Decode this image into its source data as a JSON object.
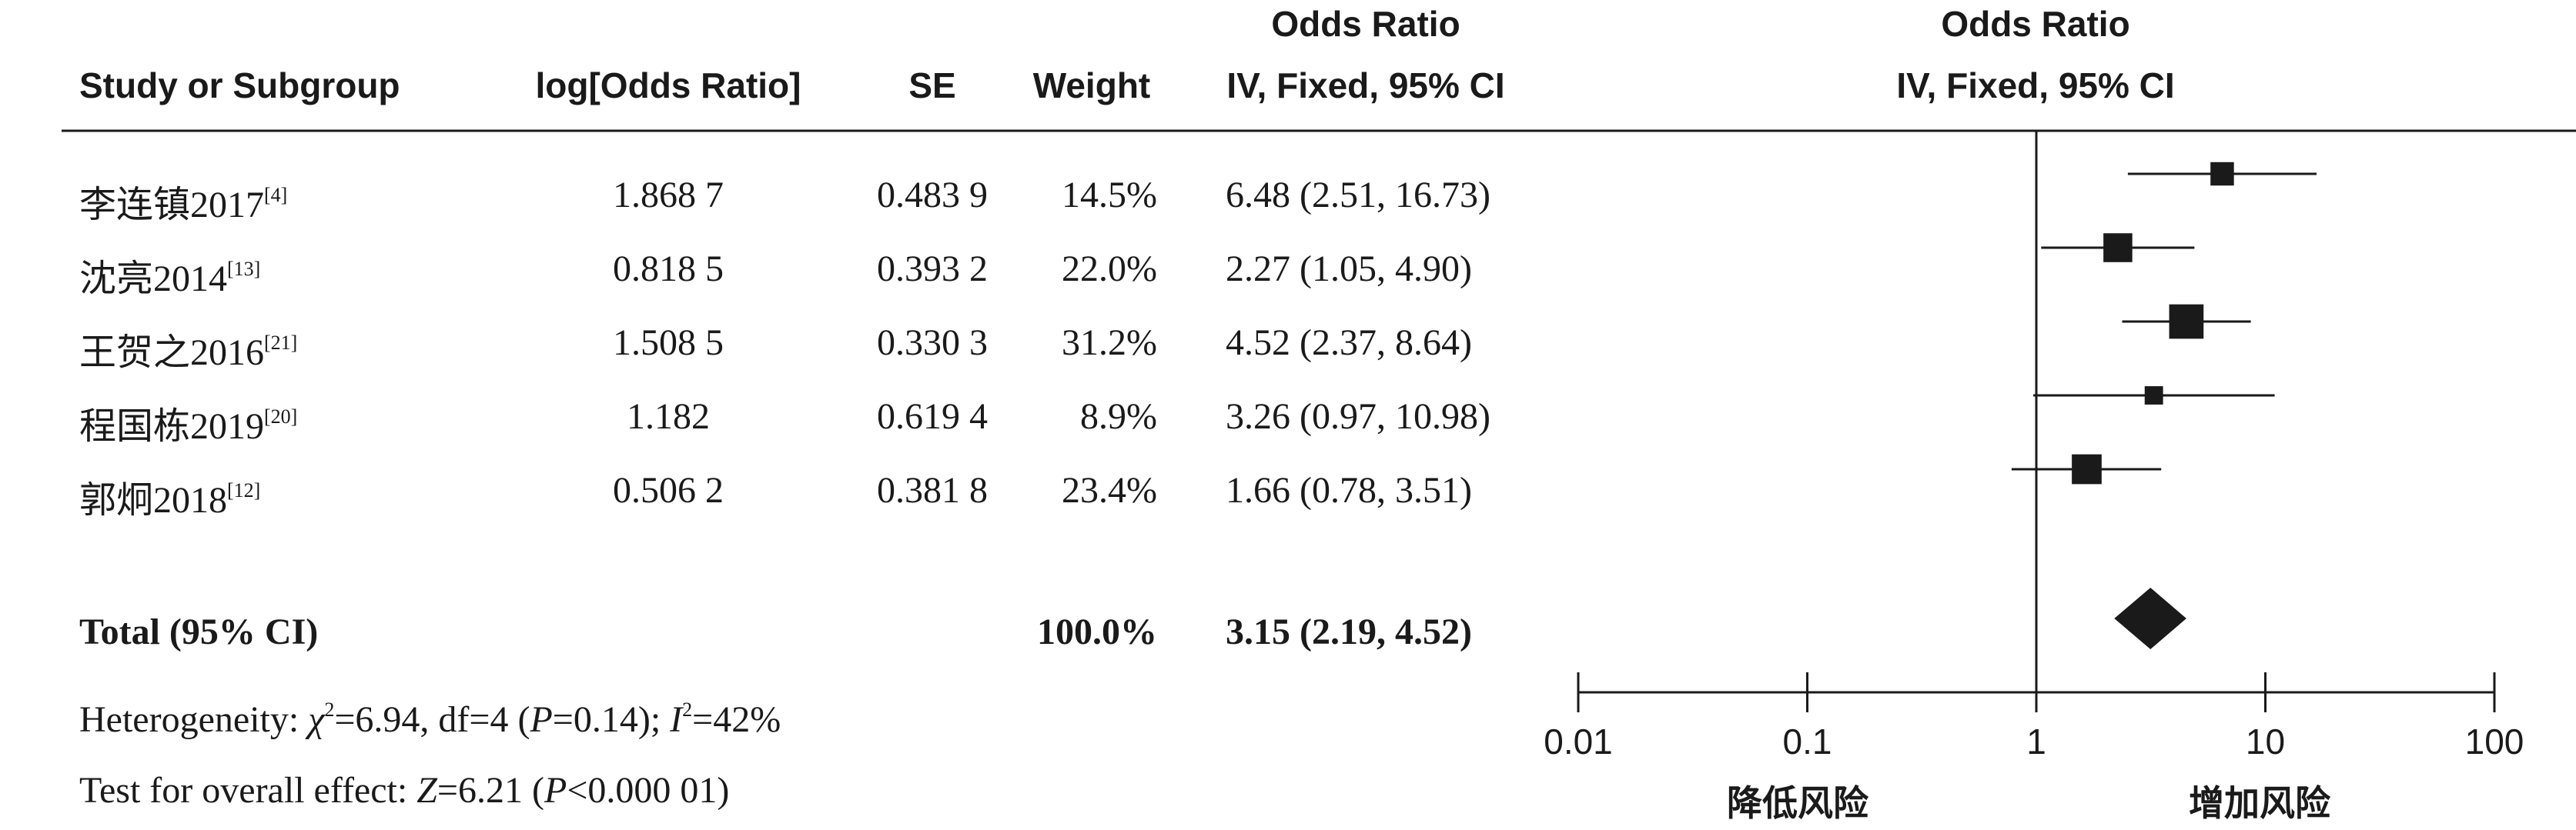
{
  "headers": {
    "study": "Study or Subgroup",
    "log_or": "log[Odds Ratio]",
    "se": "SE",
    "weight": "Weight",
    "or_line1": "Odds Ratio",
    "or_line2": "IV, Fixed, 95% CI",
    "plot_line1": "Odds Ratio",
    "plot_line2": "IV, Fixed, 95% CI"
  },
  "studies": [
    {
      "name": "李连镇2017",
      "ref": "[4]",
      "log_or": "1.868 7",
      "se": "0.483 9",
      "weight": "14.5%",
      "ci_text": "6.48 (2.51, 16.73)"
    },
    {
      "name": "沈亮2014",
      "ref": "[13]",
      "log_or": "0.818 5",
      "se": "0.393 2",
      "weight": "22.0%",
      "ci_text": "2.27 (1.05, 4.90)"
    },
    {
      "name": "王贺之2016",
      "ref": "[21]",
      "log_or": "1.508 5",
      "se": "0.330 3",
      "weight": "31.2%",
      "ci_text": "4.52 (2.37, 8.64)"
    },
    {
      "name": "程国栋2019",
      "ref": "[20]",
      "log_or": "1.182",
      "se": "0.619 4",
      "weight": "8.9%",
      "ci_text": "3.26 (0.97, 10.98)"
    },
    {
      "name": "郭炯2018",
      "ref": "[12]",
      "log_or": "0.506 2",
      "se": "0.381 8",
      "weight": "23.4%",
      "ci_text": "1.66 (0.78, 3.51)"
    }
  ],
  "total": {
    "label": "Total (95% CI)",
    "weight": "100.0%",
    "ci_text": "3.15 (2.19, 4.52)"
  },
  "heterogeneity": {
    "prefix": "Heterogeneity: ",
    "chi": "χ",
    "chi_sup": "2",
    "chi_val": "=6.94, df=4 (",
    "p": "P",
    "p_val": "=0.14); ",
    "i": "I",
    "i_sup": "2",
    "i_val": "=42%"
  },
  "overall": {
    "prefix": "Test for overall effect: ",
    "z": "Z",
    "z_val": "=6.21 (",
    "p": "P",
    "p_val": "<0.000 01)"
  },
  "chart_data": {
    "type": "forest",
    "scale": "log",
    "xlim": [
      0.01,
      100
    ],
    "ticks": [
      "0.01",
      "0.1",
      "1",
      "10",
      "100"
    ],
    "null_value": 1,
    "left_label": "降低风险",
    "right_label": "增加风险",
    "studies": [
      {
        "name": "李连镇2017",
        "or": 6.48,
        "lower": 2.51,
        "upper": 16.73,
        "weight": 14.5
      },
      {
        "name": "沈亮2014",
        "or": 2.27,
        "lower": 1.05,
        "upper": 4.9,
        "weight": 22.0
      },
      {
        "name": "王贺之2016",
        "or": 4.52,
        "lower": 2.37,
        "upper": 8.64,
        "weight": 31.2
      },
      {
        "name": "程国栋2019",
        "or": 3.26,
        "lower": 0.97,
        "upper": 10.98,
        "weight": 8.9
      },
      {
        "name": "郭炯2018",
        "or": 1.66,
        "lower": 0.78,
        "upper": 3.51,
        "weight": 23.4
      }
    ],
    "total": {
      "or": 3.15,
      "lower": 2.19,
      "upper": 4.52
    }
  }
}
